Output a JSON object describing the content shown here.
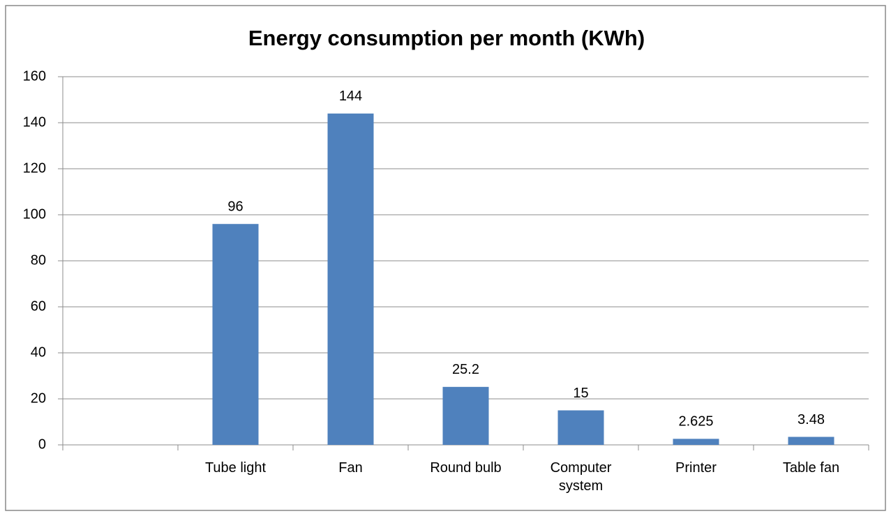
{
  "chart_data": {
    "type": "bar",
    "title": "Energy consumption per month (KWh)",
    "categories": [
      null,
      "Tube light",
      "Fan",
      "Round bulb",
      "Computer system",
      "Printer",
      "Table fan"
    ],
    "values": [
      null,
      96,
      144,
      25.2,
      15,
      2.625,
      3.48
    ],
    "color": "#4f81bd",
    "ylim": [
      0,
      160
    ],
    "yticks": [
      0,
      20,
      40,
      60,
      80,
      100,
      120,
      140,
      160
    ],
    "grid": true
  }
}
